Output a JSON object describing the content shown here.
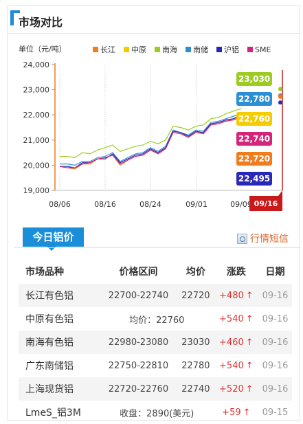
{
  "header": {
    "title": "市场对比"
  },
  "chart_data": {
    "type": "line",
    "unit_label": "单位（元/吨）",
    "legend": [
      {
        "name": "长江",
        "color": "#f07c1c"
      },
      {
        "name": "中原",
        "color": "#f5cc00"
      },
      {
        "name": "南海",
        "color": "#9ccc1f"
      },
      {
        "name": "南储",
        "color": "#2c8fd6"
      },
      {
        "name": "沪铝",
        "color": "#2a28b8"
      },
      {
        "name": "SME",
        "color": "#d6247a"
      }
    ],
    "y_ticks": [
      "24,000",
      "23,000",
      "22,000",
      "21,000",
      "20,000",
      "19,000"
    ],
    "ylim": [
      19000,
      24000
    ],
    "x_ticks": [
      "08/06",
      "08/16",
      "08/24",
      "09/01",
      "09/09"
    ],
    "current_date": "09/16",
    "series": [
      {
        "name": "南海",
        "values": [
          20350,
          20350,
          20300,
          20500,
          20450,
          20600,
          20700,
          20800,
          20550,
          20650,
          20750,
          20800,
          20950,
          20850,
          21000,
          21550,
          21500,
          21400,
          21550,
          21600,
          21850,
          21900,
          22050,
          22150,
          22250
        ]
      },
      {
        "name": "南储",
        "values": [
          20050,
          20050,
          20000,
          20150,
          20150,
          20300,
          20350,
          20500,
          20150,
          20300,
          20450,
          20500,
          20700,
          20550,
          20750,
          21400,
          21300,
          21200,
          21400,
          21350,
          21700,
          21750,
          21850,
          21950,
          22050
        ]
      },
      {
        "name": "长江",
        "values": [
          19950,
          19900,
          19850,
          20050,
          20050,
          20250,
          20300,
          20400,
          20000,
          20200,
          20350,
          20400,
          20600,
          20500,
          20650,
          21300,
          21250,
          21150,
          21300,
          21300,
          21600,
          21700,
          21750,
          21850,
          21950
        ]
      },
      {
        "name": "沪铝",
        "values": [
          19950,
          19950,
          19900,
          20100,
          20100,
          20250,
          20250,
          20450,
          20100,
          20250,
          20400,
          20450,
          20650,
          20500,
          20700,
          21350,
          21300,
          21150,
          21350,
          21300,
          21650,
          21700,
          21800,
          21850,
          22000
        ]
      },
      {
        "name": "SME",
        "values": [
          19950,
          19900,
          19900,
          20050,
          20100,
          20250,
          20300,
          20400,
          20050,
          20200,
          20350,
          20400,
          20600,
          20450,
          20650,
          21300,
          21250,
          21100,
          21300,
          21250,
          21600,
          21650,
          21750,
          21800,
          21950
        ]
      }
    ],
    "end_points": [
      {
        "series": "南海",
        "value": 23030
      },
      {
        "series": "南储",
        "value": 22780
      },
      {
        "series": "中原",
        "value": 22760
      },
      {
        "series": "SME",
        "value": 22740
      },
      {
        "series": "长江",
        "value": 22720
      },
      {
        "series": "沪铝",
        "value": 22495
      }
    ],
    "callouts": [
      {
        "label": "23,030",
        "color": "#9ccc1f"
      },
      {
        "label": "22,780",
        "color": "#2c8fd6"
      },
      {
        "label": "22,760",
        "color": "#f5cc00"
      },
      {
        "label": "22,740",
        "color": "#d6247a"
      },
      {
        "label": "22,720",
        "color": "#f07c1c"
      },
      {
        "label": "22,495",
        "color": "#2a28b8"
      }
    ]
  },
  "section": {
    "tab_label": "今日铝价",
    "news_link": "行情短信"
  },
  "table": {
    "headers": [
      "市场品种",
      "价格区间",
      "均价",
      "涨跌",
      "日期"
    ],
    "rows": [
      {
        "name": "长江有色铝",
        "range": "22700-22740",
        "avg": "22720",
        "change": "+480",
        "date": "09-16"
      },
      {
        "name": "中原有色铝",
        "merged": "均价：22760",
        "change": "+540",
        "date": "09-16"
      },
      {
        "name": "南海有色铝",
        "range": "22980-23080",
        "avg": "23030",
        "change": "+460",
        "date": "09-16"
      },
      {
        "name": "广东南储铝",
        "range": "22750-22810",
        "avg": "22780",
        "change": "+540",
        "date": "09-16"
      },
      {
        "name": "上海现货铝",
        "range": "22720-22760",
        "avg": "22740",
        "change": "+520",
        "date": "09-16"
      },
      {
        "name": "LmeS_铝3M",
        "merged": "收盘：2890(美元)",
        "change": "+59",
        "date": "09-15"
      }
    ],
    "up_arrow": "↑"
  }
}
